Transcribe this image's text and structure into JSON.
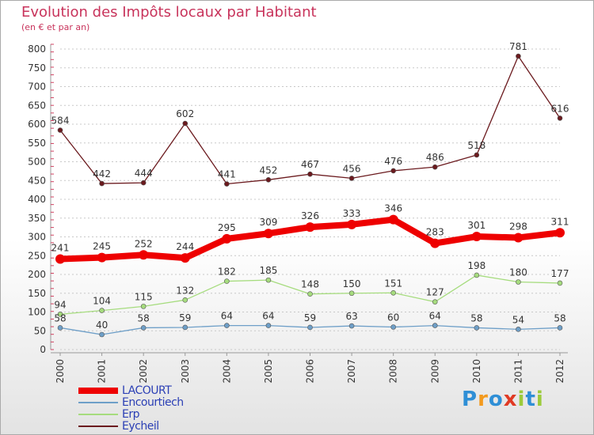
{
  "header": {
    "title": "Evolution des Impôts locaux par Habitant",
    "subtitle": "(en € et par an)"
  },
  "logo": {
    "letters": [
      "P",
      "r",
      "o",
      "x",
      "i",
      "t",
      "i"
    ],
    "colors": [
      "#2f8fd6",
      "#f39a1e",
      "#2f8fd6",
      "#e03a24",
      "#9ccb3b",
      "#2f8fd6",
      "#9ccb3b"
    ]
  },
  "chart_data": {
    "type": "line",
    "title": "Evolution des Impôts locaux par Habitant",
    "subtitle": "(en € et par an)",
    "xlabel": "",
    "ylabel": "",
    "x": [
      "2000",
      "2001",
      "2002",
      "2003",
      "2004",
      "2005",
      "2006",
      "2007",
      "2008",
      "2009",
      "2010",
      "2011",
      "2012"
    ],
    "ylim": [
      0,
      800
    ],
    "yticks": [
      0,
      50,
      100,
      150,
      200,
      250,
      300,
      350,
      400,
      450,
      500,
      550,
      600,
      650,
      700,
      750,
      800
    ],
    "grid": "horizontal dashed",
    "legend": "bottom-left",
    "series": [
      {
        "name": "Eycheil",
        "color": "#6b1a1e",
        "width": 1.3,
        "marker_r": 3,
        "labels_above": true,
        "values": [
          584,
          442,
          444,
          602,
          441,
          452,
          467,
          456,
          476,
          486,
          518,
          781,
          616
        ]
      },
      {
        "name": "Erp",
        "color": "#a6dc7e",
        "width": 1.3,
        "marker_r": 3,
        "labels_above": true,
        "values": [
          94,
          104,
          115,
          132,
          182,
          185,
          148,
          150,
          151,
          127,
          198,
          180,
          177
        ]
      },
      {
        "name": "Encourtiech",
        "color": "#6e9fc8",
        "width": 1.3,
        "marker_r": 3,
        "labels_above": true,
        "values": [
          58,
          40,
          58,
          59,
          64,
          64,
          59,
          63,
          60,
          64,
          58,
          54,
          58
        ]
      },
      {
        "name": "LACOURT",
        "color": "#ee0000",
        "width": 8,
        "marker_r": 6,
        "labels_above": true,
        "values": [
          241,
          245,
          252,
          244,
          295,
          309,
          326,
          333,
          346,
          283,
          301,
          298,
          311
        ]
      }
    ]
  }
}
